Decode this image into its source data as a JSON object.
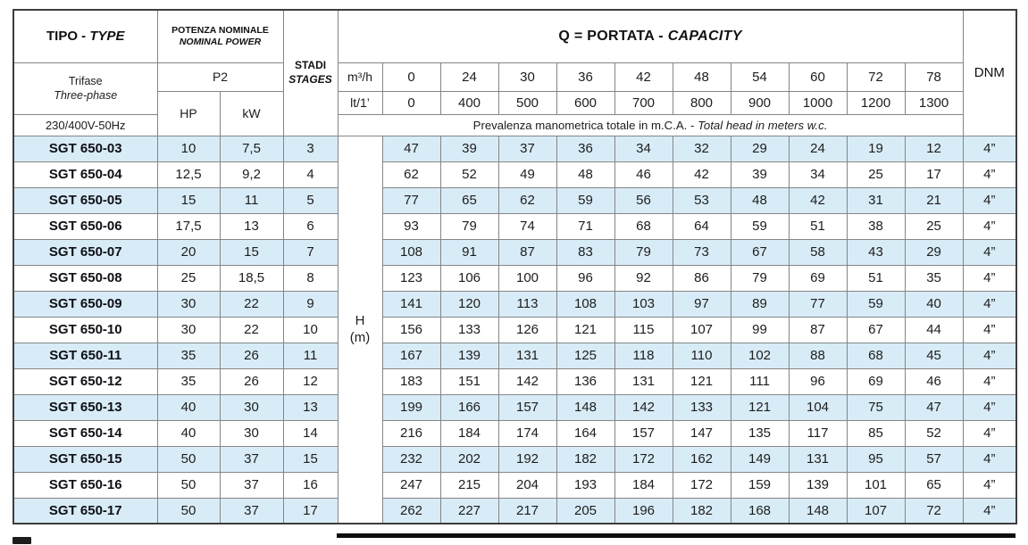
{
  "colors": {
    "row_alt_background": "#d8ecf8",
    "grid_line": "#858585",
    "outer_line": "#3d3d3d"
  },
  "header": {
    "type_col": {
      "title_bold": "TIPO - ",
      "title_italic": "TYPE",
      "phase_line1": "Trifase",
      "phase_line2": "Three-phase",
      "voltage": "230/400V-50Hz"
    },
    "power_col": {
      "title_line1": "POTENZA NOMINALE",
      "title_line2": "NOMINAL POWER",
      "p2": "P2",
      "hp": "HP",
      "kw": "kW"
    },
    "stages_col": {
      "line1": "STADI",
      "line2": "STAGES"
    },
    "capacity": {
      "title_bold": "Q = PORTATA - ",
      "title_italic": "CAPACITY",
      "m3h_label": "m³/h",
      "lt_label": "lt/1’",
      "m3h_values": [
        "0",
        "24",
        "30",
        "36",
        "42",
        "48",
        "54",
        "60",
        "72",
        "78"
      ],
      "lt_values": [
        "0",
        "400",
        "500",
        "600",
        "700",
        "800",
        "900",
        "1000",
        "1200",
        "1300"
      ],
      "note_normal": "Prevalenza manometrica totale in m.C.A. - ",
      "note_italic": "Total head in meters w.c."
    },
    "h_label": {
      "line1": "H",
      "line2": "(m)"
    },
    "dnm": "DNM"
  },
  "rows": [
    {
      "type": "SGT 650-03",
      "hp": "10",
      "kw": "7,5",
      "stages": "3",
      "values": [
        "47",
        "39",
        "37",
        "36",
        "34",
        "32",
        "29",
        "24",
        "19",
        "12"
      ],
      "dnm": "4”"
    },
    {
      "type": "SGT 650-04",
      "hp": "12,5",
      "kw": "9,2",
      "stages": "4",
      "values": [
        "62",
        "52",
        "49",
        "48",
        "46",
        "42",
        "39",
        "34",
        "25",
        "17"
      ],
      "dnm": "4”"
    },
    {
      "type": "SGT 650-05",
      "hp": "15",
      "kw": "11",
      "stages": "5",
      "values": [
        "77",
        "65",
        "62",
        "59",
        "56",
        "53",
        "48",
        "42",
        "31",
        "21"
      ],
      "dnm": "4”"
    },
    {
      "type": "SGT 650-06",
      "hp": "17,5",
      "kw": "13",
      "stages": "6",
      "values": [
        "93",
        "79",
        "74",
        "71",
        "68",
        "64",
        "59",
        "51",
        "38",
        "25"
      ],
      "dnm": "4”"
    },
    {
      "type": "SGT 650-07",
      "hp": "20",
      "kw": "15",
      "stages": "7",
      "values": [
        "108",
        "91",
        "87",
        "83",
        "79",
        "73",
        "67",
        "58",
        "43",
        "29"
      ],
      "dnm": "4”"
    },
    {
      "type": "SGT 650-08",
      "hp": "25",
      "kw": "18,5",
      "stages": "8",
      "values": [
        "123",
        "106",
        "100",
        "96",
        "92",
        "86",
        "79",
        "69",
        "51",
        "35"
      ],
      "dnm": "4”"
    },
    {
      "type": "SGT 650-09",
      "hp": "30",
      "kw": "22",
      "stages": "9",
      "values": [
        "141",
        "120",
        "113",
        "108",
        "103",
        "97",
        "89",
        "77",
        "59",
        "40"
      ],
      "dnm": "4”"
    },
    {
      "type": "SGT 650-10",
      "hp": "30",
      "kw": "22",
      "stages": "10",
      "values": [
        "156",
        "133",
        "126",
        "121",
        "115",
        "107",
        "99",
        "87",
        "67",
        "44"
      ],
      "dnm": "4”"
    },
    {
      "type": "SGT 650-11",
      "hp": "35",
      "kw": "26",
      "stages": "11",
      "values": [
        "167",
        "139",
        "131",
        "125",
        "118",
        "110",
        "102",
        "88",
        "68",
        "45"
      ],
      "dnm": "4”"
    },
    {
      "type": "SGT 650-12",
      "hp": "35",
      "kw": "26",
      "stages": "12",
      "values": [
        "183",
        "151",
        "142",
        "136",
        "131",
        "121",
        "111",
        "96",
        "69",
        "46"
      ],
      "dnm": "4”"
    },
    {
      "type": "SGT 650-13",
      "hp": "40",
      "kw": "30",
      "stages": "13",
      "values": [
        "199",
        "166",
        "157",
        "148",
        "142",
        "133",
        "121",
        "104",
        "75",
        "47"
      ],
      "dnm": "4”"
    },
    {
      "type": "SGT 650-14",
      "hp": "40",
      "kw": "30",
      "stages": "14",
      "values": [
        "216",
        "184",
        "174",
        "164",
        "157",
        "147",
        "135",
        "117",
        "85",
        "52"
      ],
      "dnm": "4”"
    },
    {
      "type": "SGT 650-15",
      "hp": "50",
      "kw": "37",
      "stages": "15",
      "values": [
        "232",
        "202",
        "192",
        "182",
        "172",
        "162",
        "149",
        "131",
        "95",
        "57"
      ],
      "dnm": "4”"
    },
    {
      "type": "SGT 650-16",
      "hp": "50",
      "kw": "37",
      "stages": "16",
      "values": [
        "247",
        "215",
        "204",
        "193",
        "184",
        "172",
        "159",
        "139",
        "101",
        "65"
      ],
      "dnm": "4”"
    },
    {
      "type": "SGT 650-17",
      "hp": "50",
      "kw": "37",
      "stages": "17",
      "values": [
        "262",
        "227",
        "217",
        "205",
        "196",
        "182",
        "168",
        "148",
        "107",
        "72"
      ],
      "dnm": "4”"
    }
  ]
}
